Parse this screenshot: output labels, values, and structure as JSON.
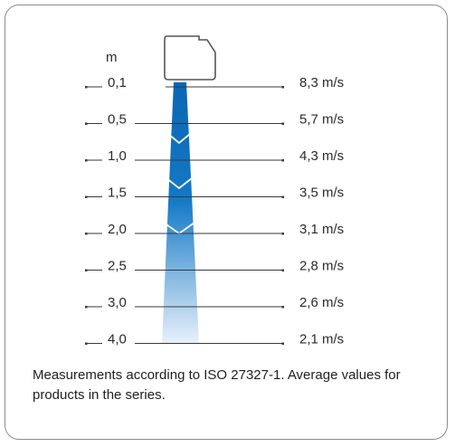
{
  "unit_label": "m",
  "rows": [
    {
      "distance": "0,1",
      "speed": "8,3 m/s"
    },
    {
      "distance": "0,5",
      "speed": "5,7 m/s"
    },
    {
      "distance": "1,0",
      "speed": "4,3 m/s"
    },
    {
      "distance": "1,5",
      "speed": "3,5 m/s"
    },
    {
      "distance": "2,0",
      "speed": "3,1 m/s"
    },
    {
      "distance": "2,5",
      "speed": "2,8 m/s"
    },
    {
      "distance": "3,0",
      "speed": "2,6 m/s"
    },
    {
      "distance": "4,0",
      "speed": "2,1 m/s"
    }
  ],
  "note": "Measurements according to ISO 27327-1. Average values for products in the series.",
  "colors": {
    "beam_top": "#0b66b3",
    "beam_bottom": "#e9f1fb",
    "line": "#3a3a3a",
    "border": "#8c8c8c"
  }
}
